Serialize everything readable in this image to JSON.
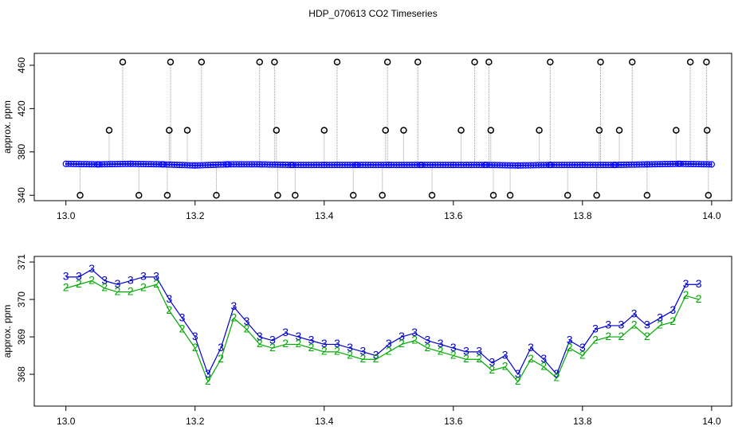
{
  "chart_data": [
    {
      "type": "scatter",
      "title": "HDP_070613  CO2 Timeseries",
      "y_label": "approx. ppm",
      "xlim": [
        12.951,
        14.031
      ],
      "ylim": [
        335,
        471
      ],
      "xticks": [
        {
          "value": 13.0,
          "label": "13.0"
        },
        {
          "value": 13.2,
          "label": "13.2"
        },
        {
          "value": 13.4,
          "label": "13.4"
        },
        {
          "value": 13.6,
          "label": "13.6"
        },
        {
          "value": 13.8,
          "label": "13.8"
        },
        {
          "value": 14.0,
          "label": "14.0"
        }
      ],
      "yticks": [
        340,
        380,
        420,
        460
      ],
      "series": [
        {
          "color": "#0000ff",
          "style": "baseline",
          "x": [
            13.0,
            13.05,
            13.1,
            13.15,
            13.2,
            13.25,
            13.3,
            13.35,
            13.4,
            13.45,
            13.5,
            13.55,
            13.6,
            13.65,
            13.7,
            13.75,
            13.8,
            13.85,
            13.9,
            13.95,
            14.0
          ],
          "values": [
            369,
            368.5,
            369,
            368.5,
            367.5,
            368.5,
            368.5,
            368,
            368,
            368,
            368,
            368,
            368,
            368,
            367.5,
            368,
            368,
            368,
            368.5,
            369,
            368.5
          ]
        },
        {
          "color": "#000000",
          "style": "spike",
          "x": [
            13.088,
            13.162,
            13.21,
            13.3,
            13.323,
            13.42,
            13.498,
            13.545,
            13.633,
            13.655,
            13.75,
            13.828,
            13.877,
            13.967,
            13.992,
            13.067,
            13.16,
            13.188,
            13.326,
            13.4,
            13.495,
            13.523,
            13.612,
            13.658,
            13.733,
            13.826,
            13.857,
            13.945,
            13.993,
            13.022,
            13.113,
            13.157,
            13.233,
            13.328,
            13.355,
            13.445,
            13.49,
            13.567,
            13.662,
            13.688,
            13.777,
            13.822,
            13.9,
            13.995
          ],
          "values": [
            463,
            463,
            463,
            463,
            463,
            463,
            463,
            463,
            463,
            463,
            463,
            463,
            463,
            463,
            463,
            400,
            400,
            400,
            400,
            400,
            400,
            400,
            400,
            400,
            400,
            400,
            400,
            400,
            400,
            340,
            340,
            340,
            340,
            340,
            340,
            340,
            340,
            340,
            340,
            340,
            340,
            340,
            340,
            340
          ]
        }
      ]
    },
    {
      "type": "charline",
      "y_label": "approx. ppm",
      "xlim": [
        12.951,
        14.031
      ],
      "ylim": [
        367.15,
        371.15
      ],
      "xticks": [
        {
          "value": 13.0,
          "label": "13.0"
        },
        {
          "value": 13.2,
          "label": "13.2"
        },
        {
          "value": 13.4,
          "label": "13.4"
        },
        {
          "value": 13.6,
          "label": "13.6"
        },
        {
          "value": 13.8,
          "label": "13.8"
        },
        {
          "value": 14.0,
          "label": "14.0"
        }
      ],
      "yticks": [
        368,
        369,
        370,
        371
      ],
      "series": [
        {
          "marker": "3",
          "color": "#0000cc",
          "x": [
            13.0,
            13.02,
            13.04,
            13.06,
            13.08,
            13.1,
            13.12,
            13.14,
            13.16,
            13.18,
            13.2,
            13.22,
            13.24,
            13.26,
            13.28,
            13.3,
            13.32,
            13.34,
            13.36,
            13.38,
            13.4,
            13.42,
            13.44,
            13.46,
            13.48,
            13.5,
            13.52,
            13.54,
            13.56,
            13.58,
            13.6,
            13.62,
            13.64,
            13.66,
            13.68,
            13.7,
            13.72,
            13.74,
            13.76,
            13.78,
            13.8,
            13.82,
            13.84,
            13.86,
            13.88,
            13.9,
            13.92,
            13.94,
            13.96,
            13.98
          ],
          "values": [
            370.6,
            370.6,
            370.8,
            370.5,
            370.4,
            370.5,
            370.6,
            370.6,
            370.0,
            369.5,
            369.0,
            368.0,
            368.7,
            369.8,
            369.4,
            369.0,
            368.9,
            369.1,
            369.0,
            368.9,
            368.8,
            368.8,
            368.7,
            368.6,
            368.5,
            368.8,
            369.0,
            369.1,
            368.9,
            368.8,
            368.7,
            368.6,
            368.6,
            368.3,
            368.5,
            368.0,
            368.7,
            368.4,
            368.0,
            368.9,
            368.7,
            369.2,
            369.3,
            369.3,
            369.6,
            369.3,
            369.5,
            369.7,
            370.4,
            370.4
          ]
        },
        {
          "marker": "2",
          "color": "#00aa00",
          "x": [
            13.0,
            13.02,
            13.04,
            13.06,
            13.08,
            13.1,
            13.12,
            13.14,
            13.16,
            13.18,
            13.2,
            13.22,
            13.24,
            13.26,
            13.28,
            13.3,
            13.32,
            13.34,
            13.36,
            13.38,
            13.4,
            13.42,
            13.44,
            13.46,
            13.48,
            13.5,
            13.52,
            13.54,
            13.56,
            13.58,
            13.6,
            13.62,
            13.64,
            13.66,
            13.68,
            13.7,
            13.72,
            13.74,
            13.76,
            13.78,
            13.8,
            13.82,
            13.84,
            13.86,
            13.88,
            13.9,
            13.92,
            13.94,
            13.96,
            13.98
          ],
          "values": [
            370.3,
            370.4,
            370.5,
            370.3,
            370.2,
            370.2,
            370.3,
            370.4,
            369.7,
            369.2,
            368.7,
            367.8,
            368.4,
            369.5,
            369.2,
            368.8,
            368.7,
            368.8,
            368.8,
            368.7,
            368.6,
            368.6,
            368.5,
            368.4,
            368.4,
            368.6,
            368.8,
            368.9,
            368.7,
            368.6,
            368.5,
            368.4,
            368.4,
            368.1,
            368.2,
            367.8,
            368.4,
            368.2,
            367.9,
            368.7,
            368.5,
            368.9,
            369.0,
            369.0,
            369.3,
            369.0,
            369.3,
            369.4,
            370.1,
            370.0
          ]
        }
      ]
    }
  ]
}
